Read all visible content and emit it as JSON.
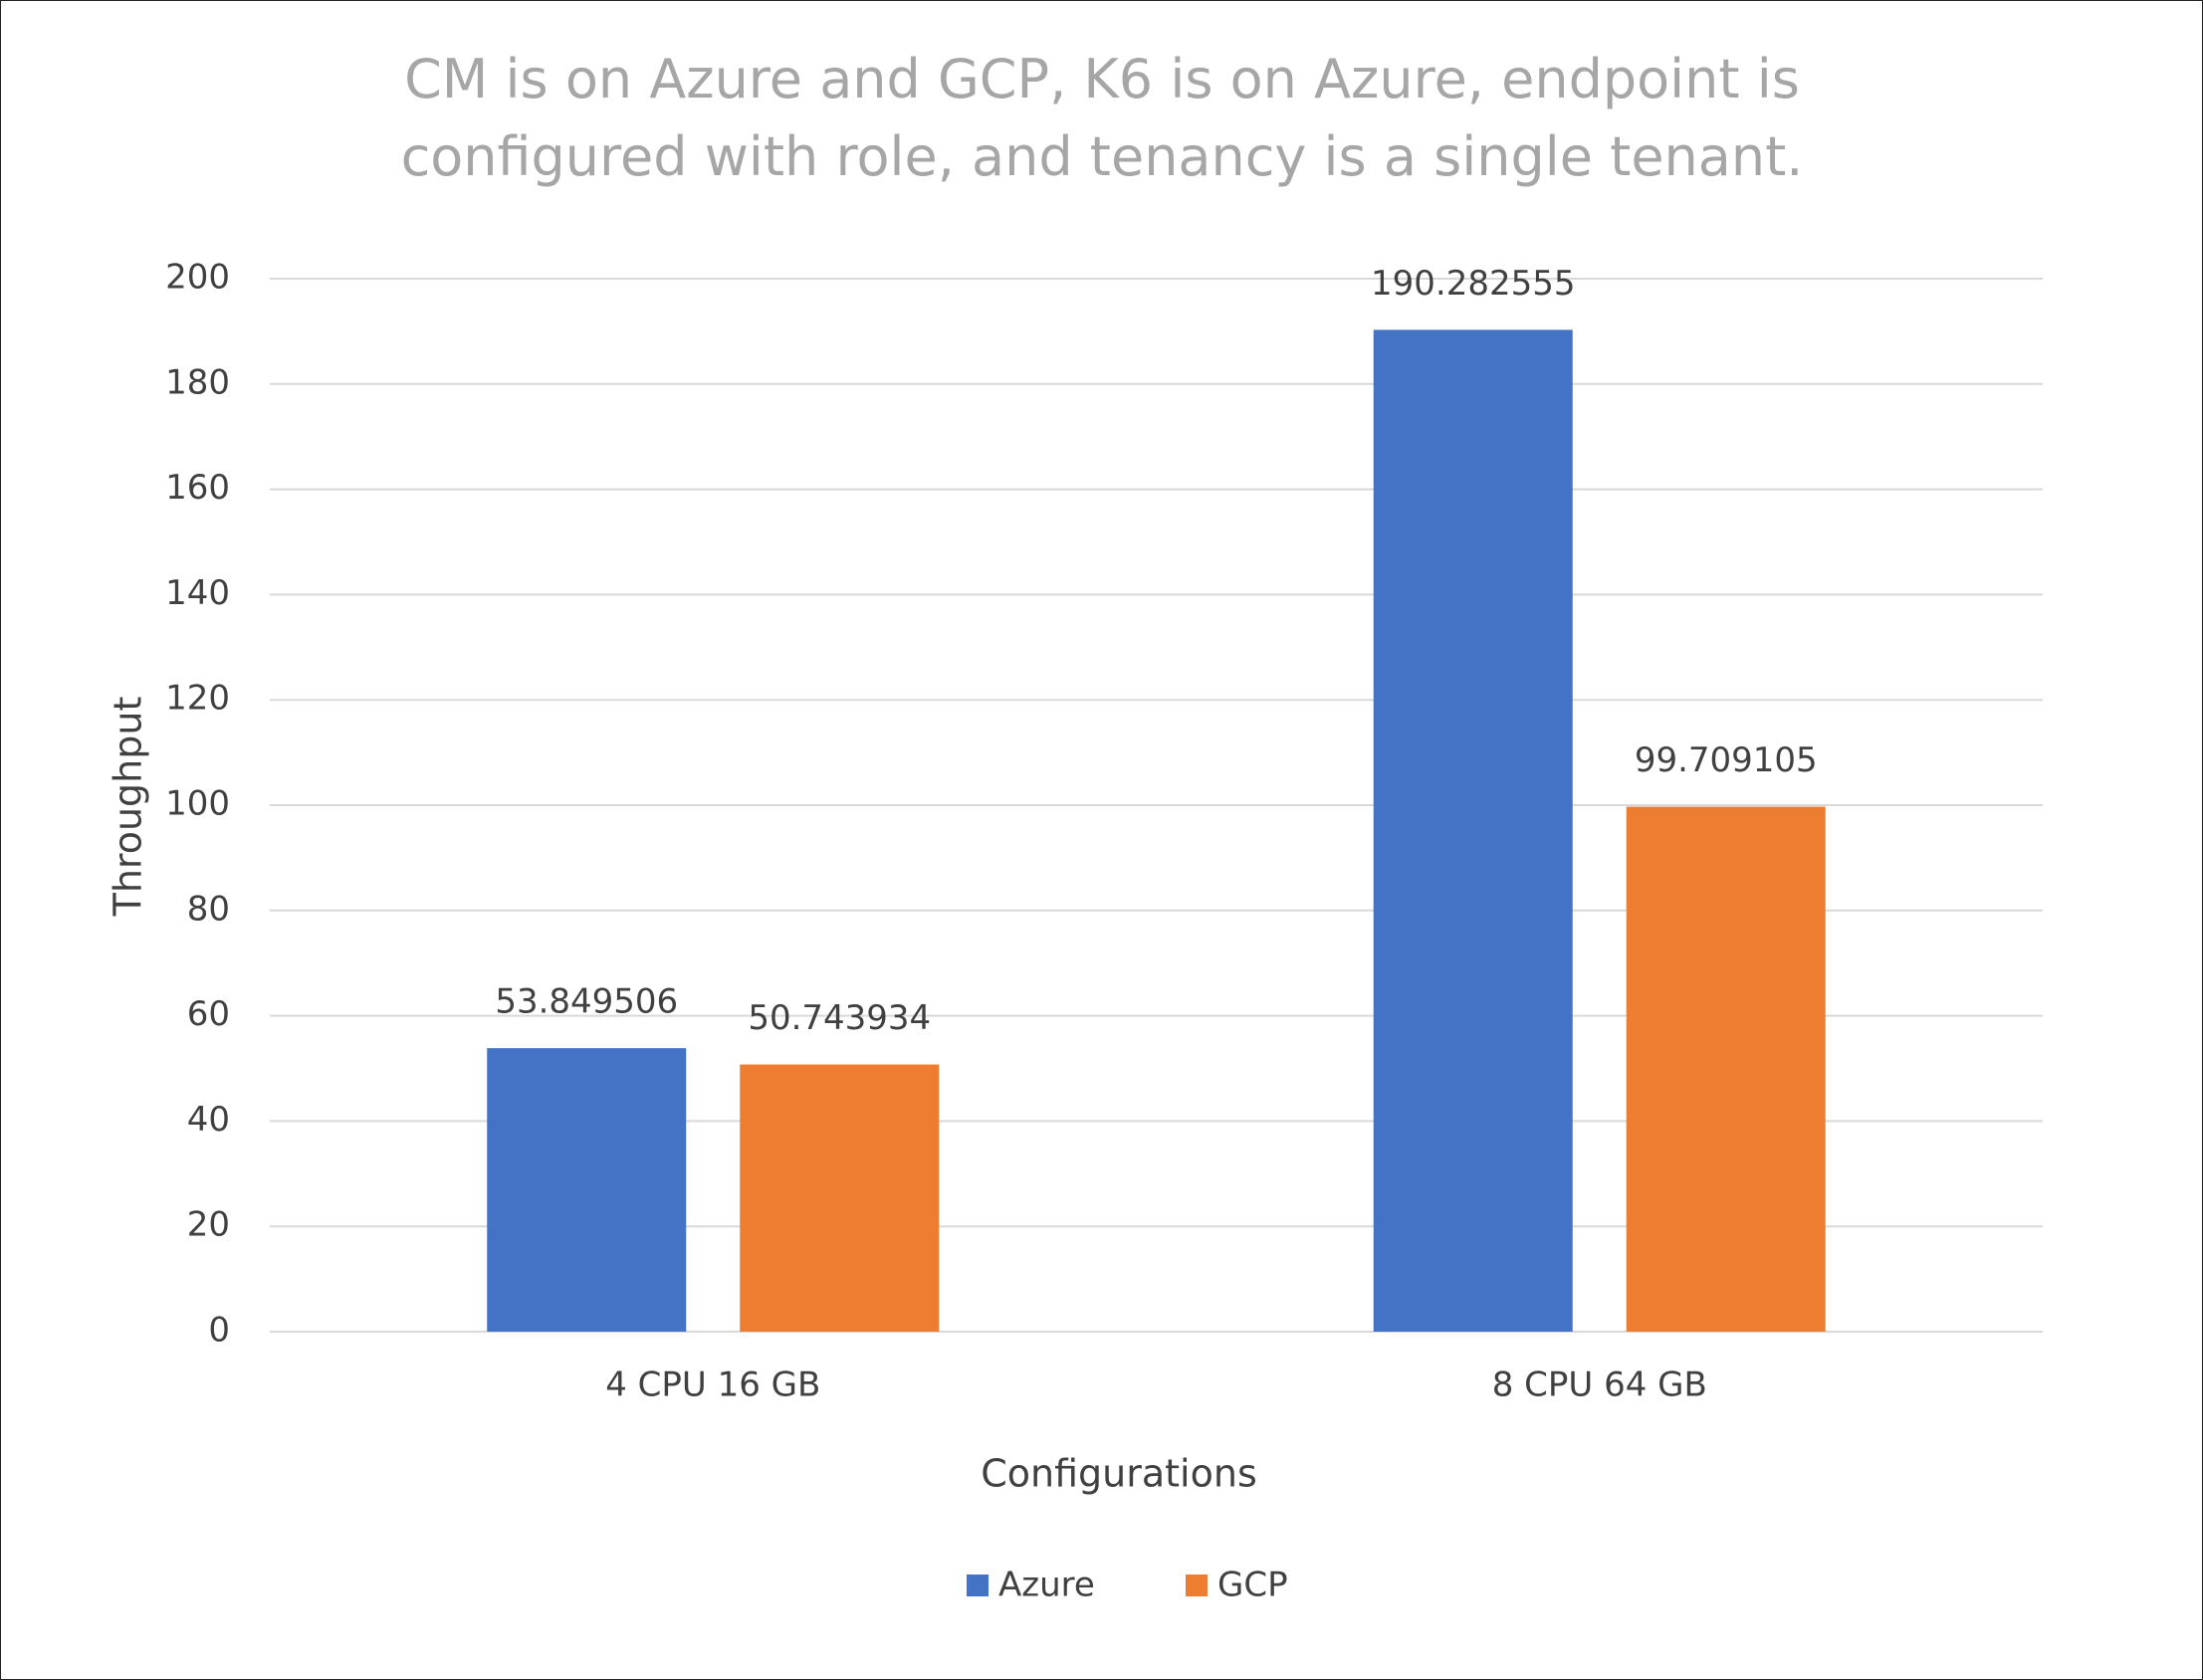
{
  "chart_data": {
    "type": "bar",
    "title": "CM is on Azure and GCP, K6 is on Azure, endpoint is configured with role, and tenancy is a single tenant.",
    "x_label": "Configurations",
    "y_label": "Throughput",
    "categories": [
      "4 CPU 16 GB",
      "8 CPU 64 GB"
    ],
    "series": [
      {
        "name": "Azure",
        "color": "#4472c4",
        "values": [
          53.849506,
          190.282555
        ]
      },
      {
        "name": "GCP",
        "color": "#ed7d31",
        "values": [
          50.743934,
          99.709105
        ]
      }
    ],
    "ylim": [
      0,
      200
    ],
    "yticks": [
      0,
      20,
      40,
      60,
      80,
      100,
      120,
      140,
      160,
      180,
      200
    ],
    "grid": true,
    "legend": "bottom"
  }
}
